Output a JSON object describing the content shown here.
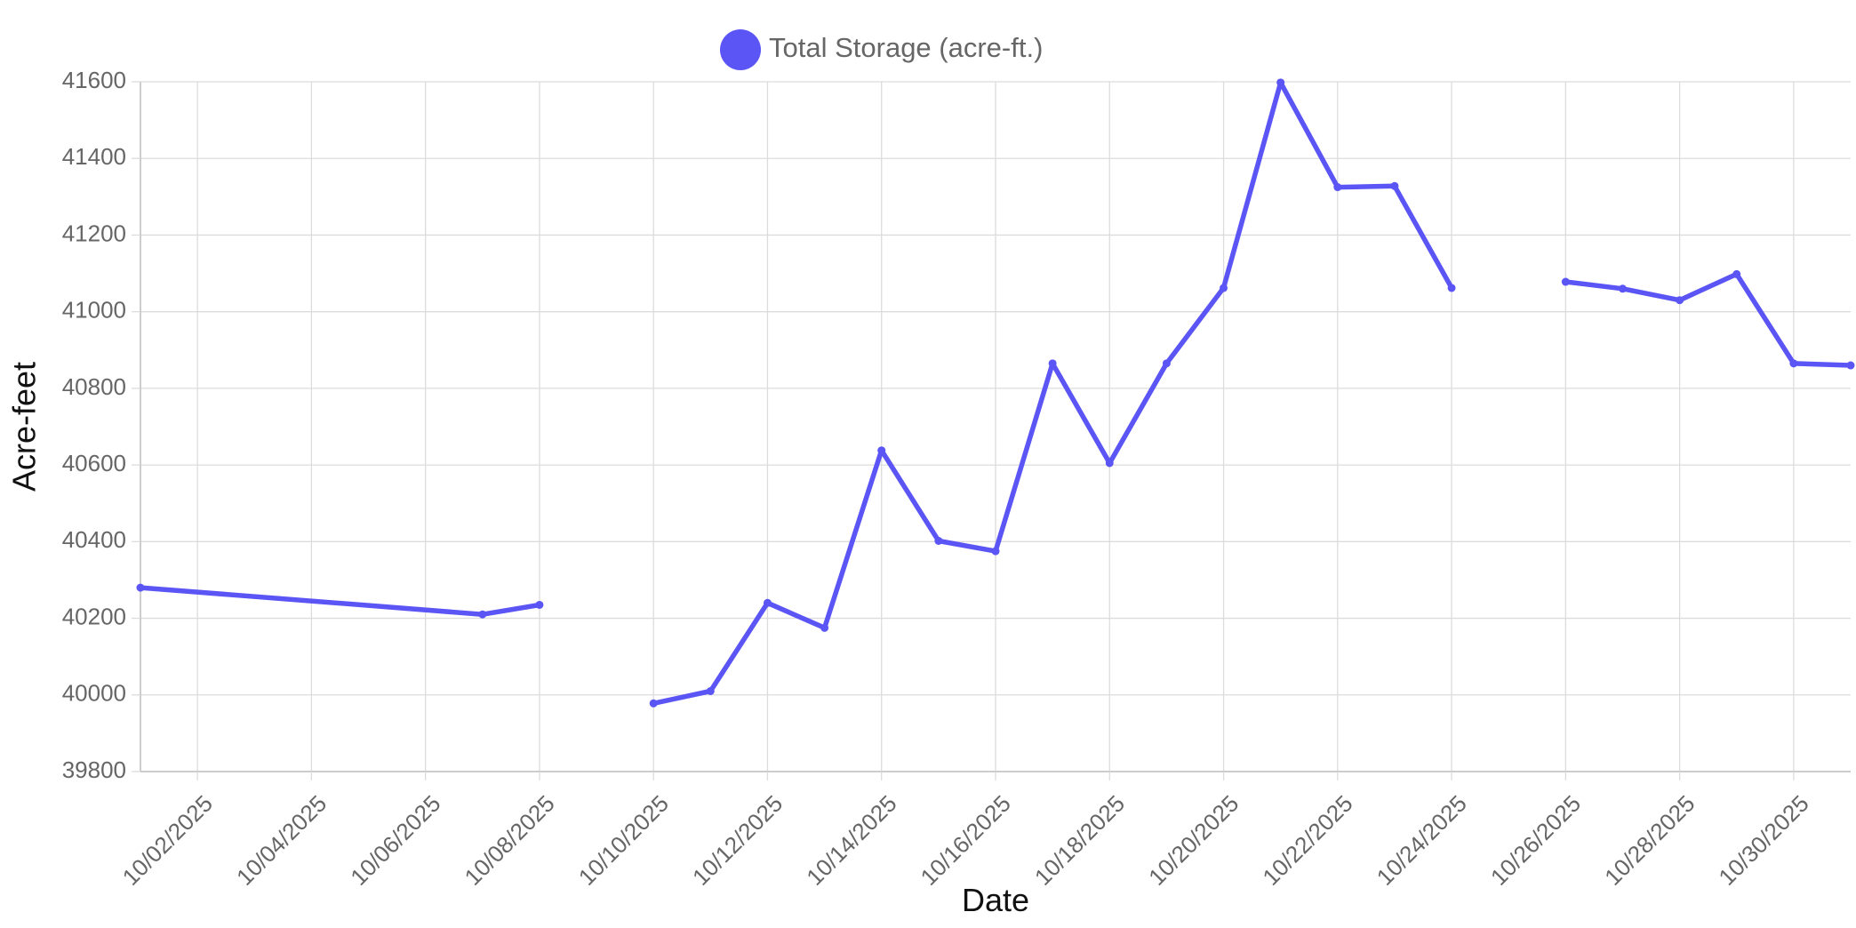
{
  "chart_data": {
    "type": "line",
    "xlabel": "Date",
    "ylabel": "Acre-feet",
    "ylim": [
      39800,
      41600
    ],
    "xlim": [
      "10/01/2025",
      "10/31/2025"
    ],
    "y_ticks": [
      39800,
      40000,
      40200,
      40400,
      40600,
      40800,
      41000,
      41200,
      41400,
      41600
    ],
    "x_ticks": [
      "10/02/2025",
      "10/04/2025",
      "10/06/2025",
      "10/08/2025",
      "10/10/2025",
      "10/12/2025",
      "10/14/2025",
      "10/16/2025",
      "10/18/2025",
      "10/20/2025",
      "10/22/2025",
      "10/24/2025",
      "10/26/2025",
      "10/28/2025",
      "10/30/2025"
    ],
    "grid": true,
    "legend_position": "top-center",
    "series": [
      {
        "name": "Total Storage (acre-ft.)",
        "color": "#5b55f5",
        "points": [
          {
            "x": "10/01/2025",
            "y": 40280
          },
          {
            "x": "10/07/2025",
            "y": 40210
          },
          {
            "x": "10/08/2025",
            "y": 40235
          },
          {
            "x": "10/09/2025",
            "y": null
          },
          {
            "x": "10/10/2025",
            "y": 39978
          },
          {
            "x": "10/11/2025",
            "y": 40010
          },
          {
            "x": "10/12/2025",
            "y": 40240
          },
          {
            "x": "10/13/2025",
            "y": 40175
          },
          {
            "x": "10/14/2025",
            "y": 40638
          },
          {
            "x": "10/15/2025",
            "y": 40402
          },
          {
            "x": "10/16/2025",
            "y": 40375
          },
          {
            "x": "10/17/2025",
            "y": 40865
          },
          {
            "x": "10/18/2025",
            "y": 40605
          },
          {
            "x": "10/19/2025",
            "y": 40865
          },
          {
            "x": "10/20/2025",
            "y": 41062
          },
          {
            "x": "10/21/2025",
            "y": 41598
          },
          {
            "x": "10/22/2025",
            "y": 41325
          },
          {
            "x": "10/23/2025",
            "y": 41328
          },
          {
            "x": "10/24/2025",
            "y": 41062
          },
          {
            "x": "10/25/2025",
            "y": null
          },
          {
            "x": "10/26/2025",
            "y": 41078
          },
          {
            "x": "10/27/2025",
            "y": 41060
          },
          {
            "x": "10/28/2025",
            "y": 41030
          },
          {
            "x": "10/29/2025",
            "y": 41098
          },
          {
            "x": "10/30/2025",
            "y": 40865
          },
          {
            "x": "10/31/2025",
            "y": 40860
          }
        ]
      }
    ]
  }
}
